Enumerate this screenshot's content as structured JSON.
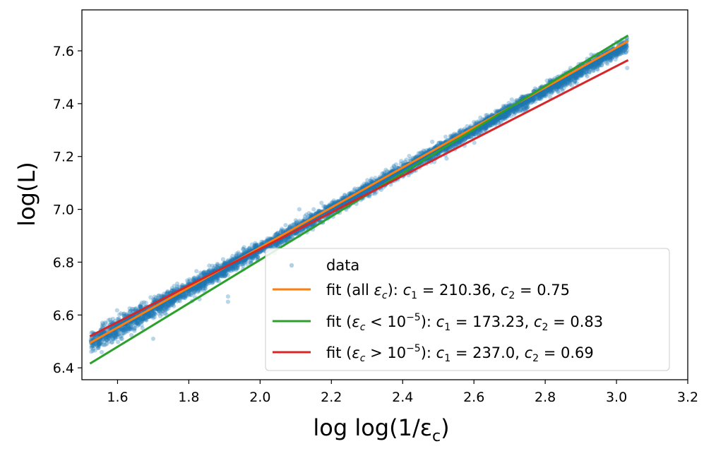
{
  "chart_data": {
    "type": "scatter",
    "xlabel": "log log(1/ε",
    "xlabel_sub": "c",
    "xlabel_close": ")",
    "ylabel": "log(L)",
    "xlim": [
      1.5,
      3.2
    ],
    "ylim": [
      6.355,
      7.755
    ],
    "xticks": [
      1.6,
      1.8,
      2.0,
      2.2,
      2.4,
      2.6,
      2.8,
      3.0,
      3.2
    ],
    "xtick_labels": [
      "1.6",
      "1.8",
      "2.0",
      "2.2",
      "2.4",
      "2.6",
      "2.8",
      "3.0",
      "3.2"
    ],
    "yticks": [
      6.4,
      6.6,
      6.8,
      7.0,
      7.2,
      7.4,
      7.6
    ],
    "ytick_labels": [
      "6.4",
      "6.6",
      "6.8",
      "7.0",
      "7.2",
      "7.4",
      "7.6"
    ],
    "grid": false,
    "legend_position": "lower-right",
    "scatter": {
      "name": "data",
      "color": "#1f77b4",
      "x_range": [
        1.525,
        3.03
      ],
      "trend": {
        "slope": 0.75,
        "intercept": 5.35
      },
      "approx_count": 6000,
      "outliers": [
        {
          "x": 1.53,
          "y": 6.5
        },
        {
          "x": 1.61,
          "y": 6.51
        },
        {
          "x": 1.7,
          "y": 6.51
        },
        {
          "x": 1.67,
          "y": 6.55
        },
        {
          "x": 1.83,
          "y": 6.66
        },
        {
          "x": 1.91,
          "y": 6.65
        },
        {
          "x": 1.91,
          "y": 6.67
        },
        {
          "x": 2.11,
          "y": 7.0
        },
        {
          "x": 2.13,
          "y": 6.98
        },
        {
          "x": 2.05,
          "y": 6.89
        },
        {
          "x": 3.03,
          "y": 7.535
        },
        {
          "x": 2.6,
          "y": 7.33
        }
      ]
    },
    "series": [
      {
        "name": "fit (all εc): c1 = 210.36, c2 = 0.75",
        "color": "#ff7f0e",
        "x": [
          1.525,
          3.03
        ],
        "y": [
          6.496,
          7.635
        ]
      },
      {
        "name": "fit (εc < 10^-5): c1 = 173.23, c2 = 0.83",
        "color": "#2ca02c",
        "x": [
          1.525,
          3.03
        ],
        "y": [
          6.418,
          7.656
        ]
      },
      {
        "name": "fit (εc > 10^-5): c1 = 237.0, c2 = 0.69",
        "color": "#d62728",
        "x": [
          1.525,
          3.03
        ],
        "y": [
          6.521,
          7.563
        ]
      }
    ],
    "legend": [
      {
        "marker": "dot",
        "color": "#1f77b4",
        "label": "data"
      },
      {
        "marker": "line",
        "color": "#ff7f0e",
        "label_prefix": "fit (all ",
        "label_eps": "ε",
        "label_sub": "c",
        "label_mid": "): ",
        "label_c1": "c",
        "label_c1_sub": "1",
        "label_c1_val": " = 210.36, ",
        "label_c2": "c",
        "label_c2_sub": "2",
        "label_c2_val": " = 0.75"
      },
      {
        "marker": "line",
        "color": "#2ca02c",
        "label_prefix": "fit (",
        "label_eps": "ε",
        "label_sub": "c",
        "label_mid": " < 10",
        "label_exp": "−5",
        "label_mid2": "): ",
        "label_c1": "c",
        "label_c1_sub": "1",
        "label_c1_val": " = 173.23, ",
        "label_c2": "c",
        "label_c2_sub": "2",
        "label_c2_val": " = 0.83"
      },
      {
        "marker": "line",
        "color": "#d62728",
        "label_prefix": "fit (",
        "label_eps": "ε",
        "label_sub": "c",
        "label_mid": " > 10",
        "label_exp": "−5",
        "label_mid2": "): ",
        "label_c1": "c",
        "label_c1_sub": "1",
        "label_c1_val": " = 237.0, ",
        "label_c2": "c",
        "label_c2_sub": "2",
        "label_c2_val": " = 0.69"
      }
    ]
  }
}
